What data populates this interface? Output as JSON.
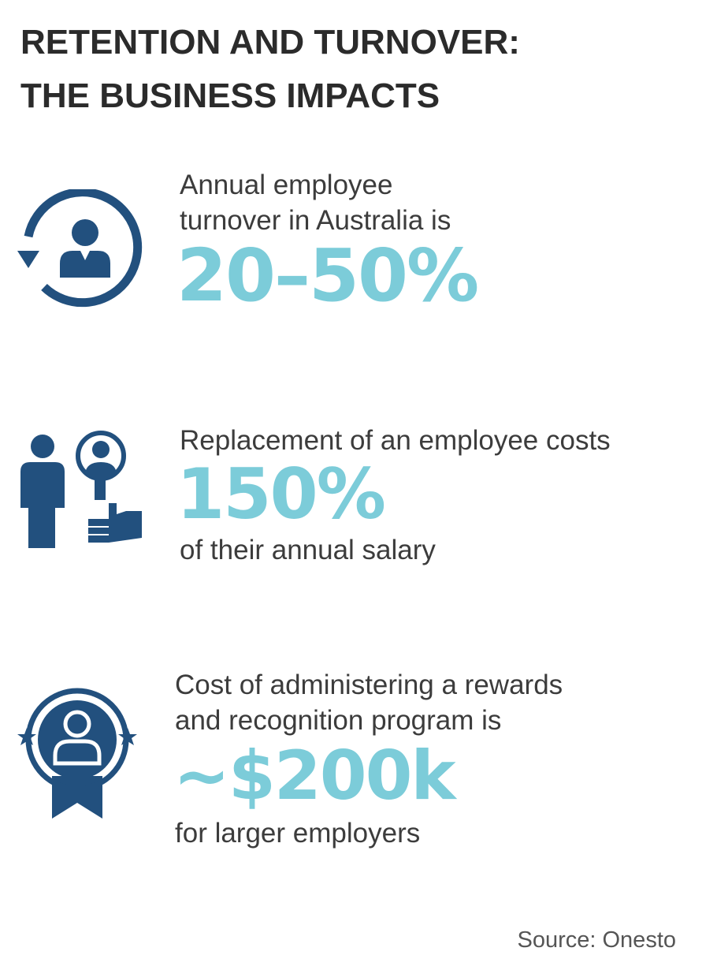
{
  "title": {
    "line1": "RETENTION AND TURNOVER:",
    "line2": "THE BUSINESS IMPACTS"
  },
  "accent_color": "#7cccd9",
  "icon_color": "#22507e",
  "stats": [
    {
      "icon": "turnover-cycle-icon",
      "lead_line1": "Annual employee",
      "lead_line2": "turnover in Australia is",
      "value": "20–50%"
    },
    {
      "icon": "employee-replacement-icon",
      "lead_line1": "Replacement of an employee costs",
      "value": "150%",
      "tail_line1": "of their annual salary"
    },
    {
      "icon": "recognition-badge-icon",
      "lead_line1": "Cost of administering a rewards",
      "lead_line2": "and recognition program is",
      "value": "~$200k",
      "tail_line1": "for larger employers"
    }
  ],
  "source": "Source: Onesto"
}
